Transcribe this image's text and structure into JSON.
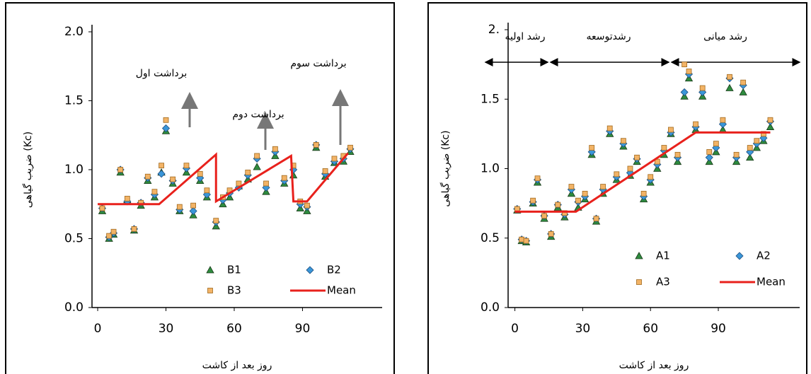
{
  "chart_data": [
    {
      "type": "scatter",
      "xlabel": "روز بعد از کاشت",
      "ylabel": "ضریب گیاهی (Kc)",
      "xlim": [
        -2.5,
        125
      ],
      "xticks": [
        0,
        30,
        60,
        90
      ],
      "ylim": [
        0,
        2
      ],
      "yticks": [
        {
          "value": 0,
          "label": "0.0"
        },
        0.5,
        {
          "value": 1,
          "label": "1.0"
        },
        1.5,
        {
          "value": 2,
          "label": "2.0"
        }
      ],
      "legend": "lower right",
      "annotations": [
        "برداشت اول",
        "برداشت دوم",
        "برداشت سوم"
      ],
      "series": [
        {
          "name": "B1",
          "marker": "triangle",
          "color": "#2e8b3e",
          "x": [
            2,
            5,
            7,
            10,
            13,
            16,
            19,
            22,
            25,
            28,
            30,
            33,
            36,
            39,
            42,
            45,
            48,
            52,
            55,
            58,
            62,
            66,
            70,
            74,
            78,
            82,
            86,
            89,
            92,
            96,
            100,
            104,
            108,
            111
          ],
          "values": [
            0.7,
            0.5,
            0.53,
            0.98,
            0.78,
            0.56,
            0.74,
            0.92,
            0.8,
            0.98,
            1.28,
            0.9,
            0.7,
            0.98,
            0.67,
            0.92,
            0.8,
            0.59,
            0.75,
            0.8,
            0.88,
            0.93,
            1.02,
            0.84,
            1.1,
            0.9,
            0.96,
            0.72,
            0.7,
            1.16,
            0.95,
            1.05,
            1.06,
            1.13
          ]
        },
        {
          "name": "B2",
          "marker": "diamond",
          "color": "#3a96d8",
          "x": [
            2,
            5,
            7,
            10,
            13,
            16,
            19,
            22,
            25,
            28,
            30,
            33,
            36,
            39,
            42,
            45,
            48,
            52,
            55,
            58,
            62,
            66,
            70,
            74,
            78,
            82,
            86,
            89,
            92,
            96,
            100,
            104,
            108,
            111
          ],
          "values": [
            0.72,
            0.51,
            0.54,
            1.0,
            0.77,
            0.57,
            0.76,
            0.94,
            0.82,
            0.97,
            1.3,
            0.92,
            0.71,
            1.01,
            0.7,
            0.94,
            0.82,
            0.62,
            0.78,
            0.83,
            0.87,
            0.96,
            1.08,
            0.87,
            1.13,
            0.92,
            1.0,
            0.75,
            0.73,
            1.18,
            0.97,
            1.06,
            1.08,
            1.15
          ]
        },
        {
          "name": "B3",
          "marker": "square",
          "color": "#f2b366",
          "x": [
            2,
            5,
            7,
            10,
            13,
            16,
            19,
            22,
            25,
            28,
            30,
            33,
            36,
            39,
            42,
            45,
            48,
            52,
            55,
            58,
            62,
            66,
            70,
            74,
            78,
            82,
            86,
            89,
            92,
            96,
            100,
            104,
            108,
            111
          ],
          "values": [
            0.72,
            0.52,
            0.55,
            1.0,
            0.79,
            0.57,
            0.76,
            0.95,
            0.84,
            1.03,
            1.36,
            0.93,
            0.73,
            1.03,
            0.74,
            0.97,
            0.85,
            0.63,
            0.8,
            0.85,
            0.9,
            0.98,
            1.1,
            0.9,
            1.15,
            0.94,
            1.03,
            0.77,
            0.74,
            1.18,
            0.99,
            1.08,
            1.1,
            1.16
          ]
        },
        {
          "name": "Mean",
          "marker": "line",
          "color": "#e8211c",
          "x": [
            0,
            27,
            52,
            52,
            85,
            86,
            92,
            110
          ],
          "values": [
            0.75,
            0.75,
            1.11,
            0.77,
            1.1,
            0.77,
            0.77,
            1.12
          ]
        }
      ]
    },
    {
      "type": "scatter",
      "xlabel": "روز بعد از کاشت",
      "ylabel": "ضریب گیاهی (Kc)",
      "xlim": [
        -3,
        126
      ],
      "xticks": [
        0,
        30,
        60,
        90
      ],
      "ylim": [
        0,
        2
      ],
      "yticks": [
        {
          "value": 0,
          "label": "0.0"
        },
        0.5,
        {
          "value": 1,
          "label": "1.0"
        },
        1.5,
        {
          "value": 2,
          "label": "2."
        }
      ],
      "legend": "lower right",
      "annotations": [
        "رشد اولیه",
        "رشدتوسعه",
        "رشد میانی"
      ],
      "series": [
        {
          "name": "A1",
          "marker": "triangle",
          "color": "#2e8b3e",
          "x": [
            1,
            3,
            5,
            8,
            10,
            13,
            16,
            19,
            22,
            25,
            28,
            31,
            34,
            36,
            39,
            42,
            45,
            48,
            51,
            54,
            57,
            60,
            63,
            66,
            69,
            72,
            75,
            77,
            80,
            83,
            86,
            89,
            92,
            95,
            98,
            101,
            104,
            107,
            110,
            113
          ],
          "values": [
            0.7,
            0.48,
            0.47,
            0.75,
            0.9,
            0.64,
            0.51,
            0.72,
            0.65,
            0.82,
            0.72,
            0.78,
            1.1,
            0.62,
            0.82,
            1.25,
            0.92,
            1.16,
            0.95,
            1.05,
            0.78,
            0.9,
            1.0,
            1.1,
            1.25,
            1.05,
            1.52,
            1.65,
            1.28,
            1.52,
            1.05,
            1.12,
            1.28,
            1.58,
            1.05,
            1.55,
            1.08,
            1.15,
            1.2,
            1.3
          ]
        },
        {
          "name": "A2",
          "marker": "diamond",
          "color": "#3a96d8",
          "x": [
            1,
            3,
            5,
            8,
            10,
            13,
            16,
            19,
            22,
            25,
            28,
            31,
            34,
            36,
            39,
            42,
            45,
            48,
            51,
            54,
            57,
            60,
            63,
            66,
            69,
            72,
            75,
            77,
            80,
            83,
            86,
            89,
            92,
            95,
            98,
            101,
            104,
            107,
            110,
            113
          ],
          "values": [
            0.71,
            0.49,
            0.48,
            0.76,
            0.92,
            0.66,
            0.53,
            0.74,
            0.67,
            0.85,
            0.76,
            0.8,
            1.12,
            0.64,
            0.85,
            1.27,
            0.94,
            1.18,
            0.97,
            1.07,
            0.8,
            0.92,
            1.03,
            1.13,
            1.26,
            1.08,
            1.55,
            1.68,
            1.3,
            1.55,
            1.08,
            1.15,
            1.32,
            1.65,
            1.08,
            1.6,
            1.12,
            1.18,
            1.22,
            1.34
          ]
        },
        {
          "name": "A3",
          "marker": "square",
          "color": "#f2b366",
          "x": [
            1,
            3,
            5,
            8,
            10,
            13,
            16,
            19,
            22,
            25,
            28,
            31,
            34,
            36,
            39,
            42,
            45,
            48,
            51,
            54,
            57,
            60,
            63,
            66,
            69,
            72,
            75,
            77,
            80,
            83,
            86,
            89,
            92,
            95,
            98,
            101,
            104,
            107,
            110,
            113
          ],
          "values": [
            0.71,
            0.49,
            0.48,
            0.77,
            0.93,
            0.66,
            0.53,
            0.74,
            0.68,
            0.87,
            0.77,
            0.82,
            1.15,
            0.64,
            0.87,
            1.29,
            0.96,
            1.2,
            1.0,
            1.08,
            0.82,
            0.94,
            1.05,
            1.15,
            1.28,
            1.1,
            1.75,
            1.7,
            1.32,
            1.58,
            1.12,
            1.18,
            1.35,
            1.66,
            1.1,
            1.62,
            1.15,
            1.2,
            1.25,
            1.35
          ]
        },
        {
          "name": "Mean",
          "marker": "line",
          "color": "#e8211c",
          "x": [
            0,
            27,
            80,
            113
          ],
          "values": [
            0.69,
            0.69,
            1.26,
            1.26
          ]
        }
      ]
    }
  ]
}
